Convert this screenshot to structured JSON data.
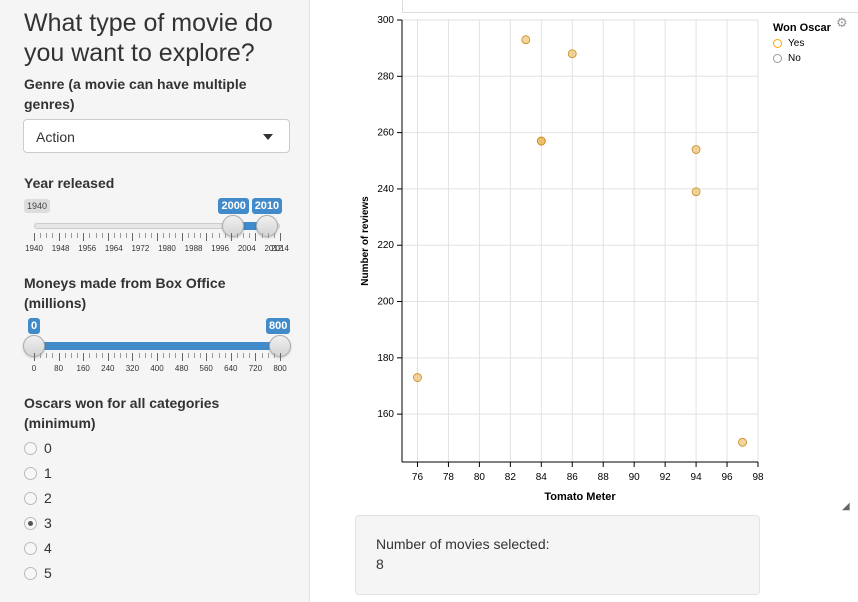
{
  "sidebar": {
    "title": "What type of movie do you want to explore?",
    "genre": {
      "label": "Genre (a movie can have multiple genres)",
      "selected": "Action"
    },
    "year": {
      "label": "Year released",
      "min": 1940,
      "max": 2014,
      "from": 2000,
      "to": 2010,
      "min_label": "1940",
      "from_label": "2000",
      "to_label": "2010",
      "tick_labels": [
        "1940",
        "1948",
        "1956",
        "1964",
        "1972",
        "1980",
        "1988",
        "1996",
        "2004",
        "2012",
        "2014"
      ]
    },
    "boxoffice": {
      "label": "Moneys made from Box Office (millions)",
      "min": 0,
      "max": 800,
      "from": 0,
      "to": 800,
      "from_label": "0",
      "to_label": "800",
      "tick_labels": [
        "0",
        "80",
        "160",
        "240",
        "320",
        "400",
        "480",
        "560",
        "640",
        "720",
        "800"
      ]
    },
    "oscars": {
      "label": "Oscars won for all categories (minimum)",
      "options": [
        "0",
        "1",
        "2",
        "3",
        "4",
        "5"
      ],
      "selected": "3"
    }
  },
  "legend": {
    "title": "Won Oscar",
    "items": [
      {
        "label": "Yes",
        "color": "#ffa500"
      },
      {
        "label": "No",
        "color": "#999999"
      }
    ]
  },
  "chart_data": {
    "type": "scatter",
    "xlabel": "Tomato Meter",
    "ylabel": "Number of reviews",
    "xlim": [
      75,
      98
    ],
    "ylim": [
      143,
      300
    ],
    "xticks": [
      76,
      78,
      80,
      82,
      84,
      86,
      88,
      90,
      92,
      94,
      96,
      98
    ],
    "yticks": [
      160,
      180,
      200,
      220,
      240,
      260,
      280,
      300
    ],
    "grid": true,
    "legend_position": "top-right",
    "series": [
      {
        "name": "Yes",
        "color": "#e8b04a",
        "x": [
          83,
          86,
          84,
          84,
          94,
          94,
          76,
          97
        ],
        "y": [
          293,
          288,
          257,
          257,
          254,
          239,
          173,
          150
        ]
      }
    ]
  },
  "summary": {
    "label": "Number of movies selected:",
    "value": "8"
  }
}
